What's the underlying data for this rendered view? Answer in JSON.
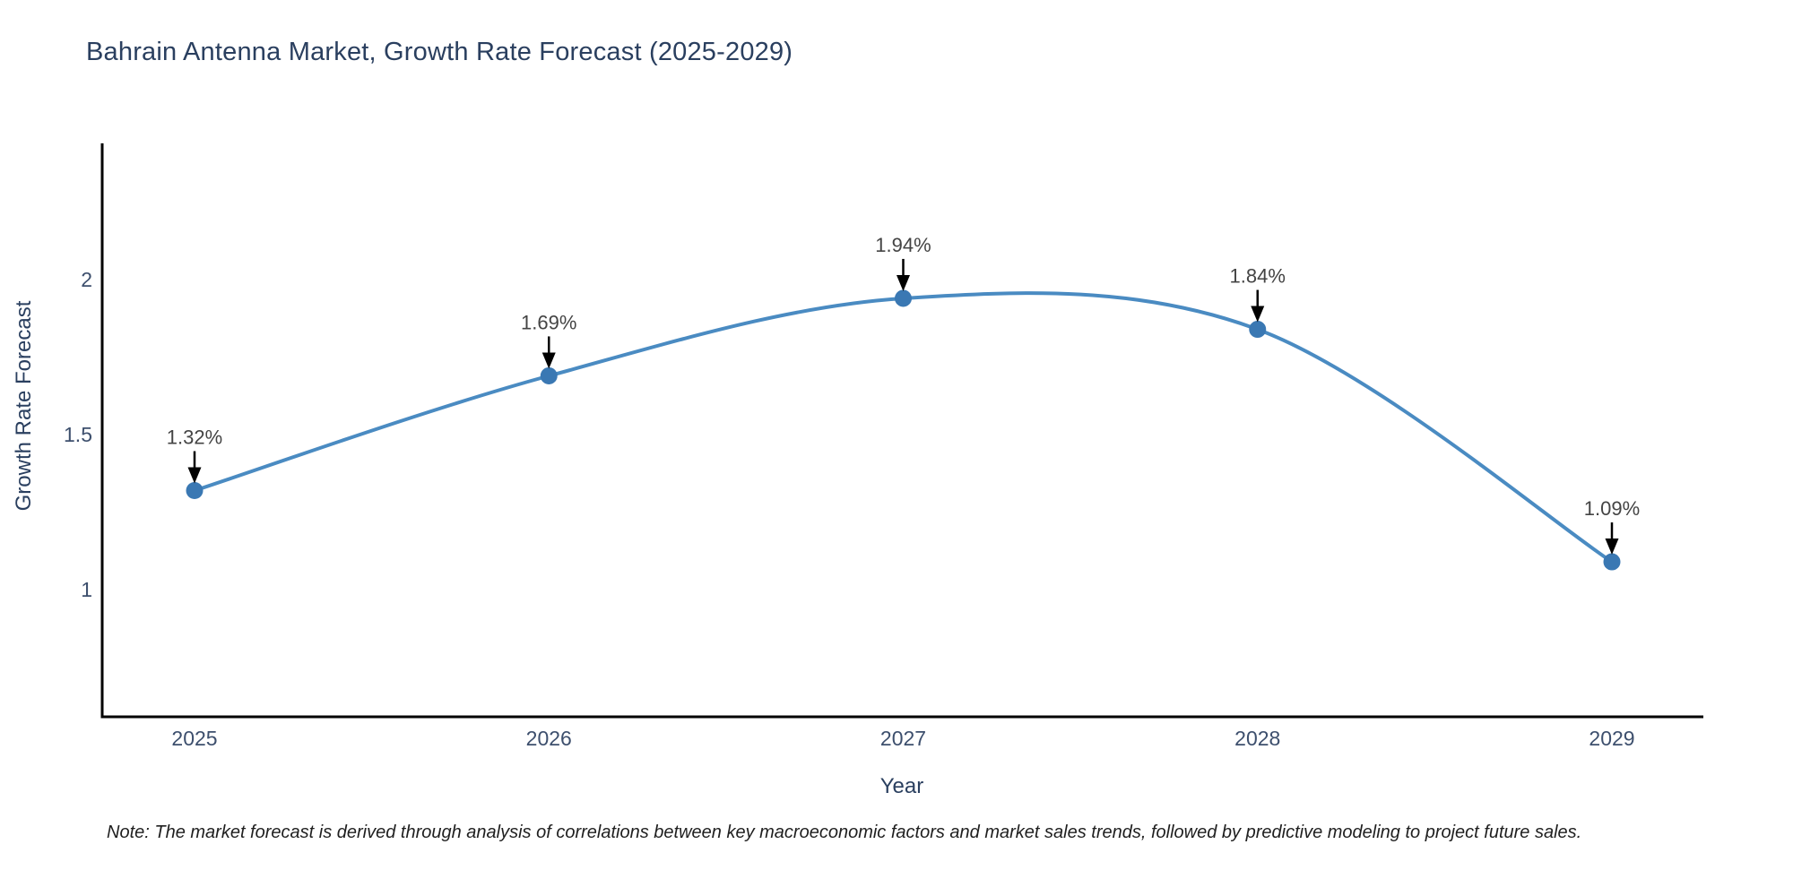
{
  "note": "Note: The market forecast is derived through analysis of correlations between key macroeconomic factors and market sales trends, followed by predictive modeling to project future sales.",
  "chart_data": {
    "type": "line",
    "title": "Bahrain Antenna Market, Growth Rate Forecast (2025-2029)",
    "xlabel": "Year",
    "ylabel": "Growth Rate Forecast",
    "x": [
      2025,
      2026,
      2027,
      2028,
      2029
    ],
    "values": [
      1.32,
      1.69,
      1.94,
      1.84,
      1.09
    ],
    "point_labels": [
      "1.32%",
      "1.69%",
      "1.94%",
      "1.84%",
      "1.09%"
    ],
    "xticks": [
      "2025",
      "2026",
      "2027",
      "2028",
      "2029"
    ],
    "yticks": [
      {
        "value": 2,
        "label": "2"
      },
      {
        "value": 1.5,
        "label": "1.5"
      },
      {
        "value": 1,
        "label": "1"
      }
    ],
    "ylim": [
      0.59,
      2.45
    ],
    "line_shape": "spline",
    "grid": false,
    "legend": "none",
    "colors": {
      "line": "#4a8bc2",
      "marker": "#3a78b3",
      "axis": "#000000",
      "tick_text": "#3d4f6d",
      "annotation": "#444444",
      "arrow": "#000000",
      "title_text": "#2a3f5f"
    }
  }
}
